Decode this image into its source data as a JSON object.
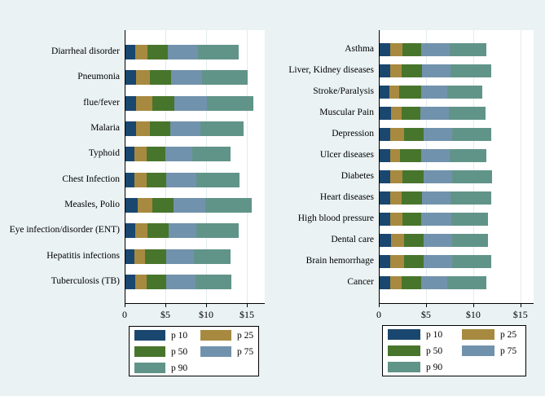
{
  "page": {
    "background_color": "#eaf2f3",
    "plot_background_color": "#ffffff",
    "gridline_color": "#e2ebee",
    "axis_color": "#000000",
    "text_color": "#000000"
  },
  "colors": {
    "p10": "#1a476f",
    "p25": "#a78a40",
    "p50": "#48752c",
    "p75": "#7192ac",
    "p90": "#619489"
  },
  "legend": {
    "entries": [
      {
        "label": "p 10",
        "color": "#1a476f"
      },
      {
        "label": "p 25",
        "color": "#a78a40"
      },
      {
        "label": "p 50",
        "color": "#48752c"
      },
      {
        "label": "p 75",
        "color": "#7192ac"
      },
      {
        "label": "p 90",
        "color": "#619489"
      }
    ],
    "position": "bottom"
  },
  "chart_data": [
    {
      "type": "bar",
      "orientation": "horizontal",
      "stacked": true,
      "title": "",
      "xlabel": "",
      "ylabel": "",
      "unit": "USD",
      "value_type": "cumulative percentile expenditure; segment width = difference from previous percentile",
      "x_ticks": [
        0,
        5,
        10,
        15
      ],
      "x_tick_labels": [
        "0",
        "$5",
        "$10",
        "$15"
      ],
      "xlim": [
        0,
        17.2
      ],
      "grid": true,
      "legend_position": "bottom",
      "categories": [
        "Diarrheal disorder",
        "Pneumonia",
        "flue/fever",
        "Malaria",
        "Typhoid",
        "Chest Infection",
        "Measles, Polio",
        "Eye infection/disorder (ENT)",
        "Hepatitis infections",
        "Tuberculosis (TB)"
      ],
      "series": [
        {
          "name": "p 10",
          "color": "#1a476f",
          "cumulative_values": [
            1.2,
            1.3,
            1.3,
            1.3,
            1.1,
            1.1,
            1.5,
            1.2,
            1.1,
            1.2
          ]
        },
        {
          "name": "p 25",
          "color": "#a78a40",
          "cumulative_values": [
            2.7,
            3.0,
            3.3,
            3.0,
            2.6,
            2.6,
            3.3,
            2.7,
            2.4,
            2.6
          ]
        },
        {
          "name": "p 50",
          "color": "#48752c",
          "cumulative_values": [
            5.2,
            5.6,
            6.0,
            5.5,
            4.9,
            5.0,
            5.9,
            5.3,
            5.0,
            5.0
          ]
        },
        {
          "name": "p 75",
          "color": "#7192ac",
          "cumulative_values": [
            8.9,
            9.4,
            10.0,
            9.2,
            8.2,
            8.7,
            9.8,
            8.7,
            8.4,
            8.6
          ]
        },
        {
          "name": "p 90",
          "color": "#619489",
          "cumulative_values": [
            13.9,
            15.0,
            15.7,
            14.5,
            12.9,
            14.0,
            15.5,
            13.9,
            12.9,
            13.0
          ]
        }
      ]
    },
    {
      "type": "bar",
      "orientation": "horizontal",
      "stacked": true,
      "title": "",
      "xlabel": "",
      "ylabel": "",
      "unit": "USD",
      "value_type": "cumulative percentile expenditure; segment width = difference from previous percentile",
      "x_ticks": [
        0,
        5,
        10,
        15
      ],
      "x_tick_labels": [
        "0",
        "$5",
        "$10",
        "$15"
      ],
      "xlim": [
        0,
        16.4
      ],
      "grid": true,
      "legend_position": "bottom",
      "categories": [
        "Asthma",
        "Liver, Kidney diseases",
        "Stroke/Paralysis",
        "Muscular Pain",
        "Depression",
        "Ulcer diseases",
        "Diabetes",
        "Heart diseases",
        "High blood pressure",
        "Dental care",
        "Brain hemorrhage",
        "Cancer"
      ],
      "series": [
        {
          "name": "p 10",
          "color": "#1a476f",
          "cumulative_values": [
            1.1,
            1.1,
            1.0,
            1.2,
            1.1,
            1.1,
            1.1,
            1.1,
            1.1,
            1.2,
            1.1,
            1.1
          ]
        },
        {
          "name": "p 25",
          "color": "#a78a40",
          "cumulative_values": [
            2.4,
            2.3,
            2.1,
            2.3,
            2.6,
            2.2,
            2.4,
            2.3,
            2.4,
            2.6,
            2.6,
            2.3
          ]
        },
        {
          "name": "p 50",
          "color": "#48752c",
          "cumulative_values": [
            4.4,
            4.5,
            4.4,
            4.3,
            4.7,
            4.4,
            4.7,
            4.5,
            4.4,
            4.7,
            4.7,
            4.4
          ]
        },
        {
          "name": "p 75",
          "color": "#7192ac",
          "cumulative_values": [
            7.4,
            7.5,
            7.2,
            7.3,
            7.7,
            7.4,
            7.7,
            7.5,
            7.6,
            7.7,
            7.7,
            7.2
          ]
        },
        {
          "name": "p 90",
          "color": "#619489",
          "cumulative_values": [
            11.3,
            11.8,
            10.9,
            11.2,
            11.8,
            11.3,
            11.9,
            11.8,
            11.5,
            11.5,
            11.8,
            11.3
          ]
        }
      ]
    }
  ]
}
